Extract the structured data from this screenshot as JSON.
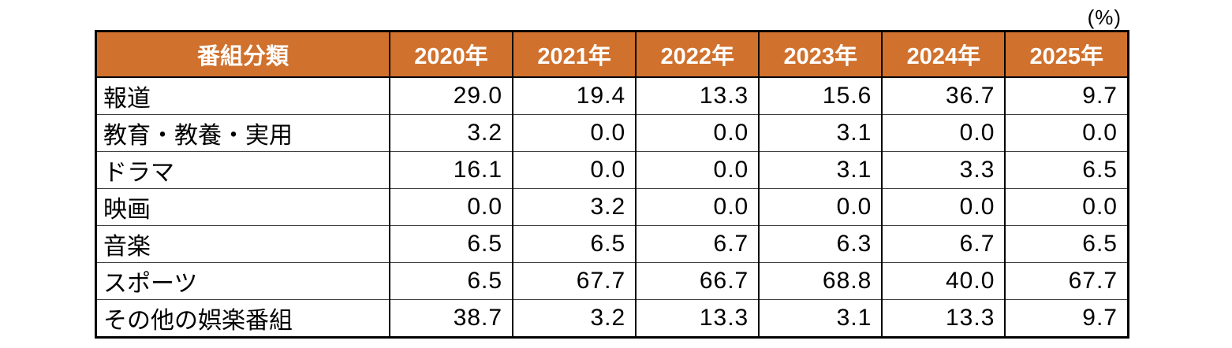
{
  "colors": {
    "header_bg": "#D0712D",
    "header_text": "#FFFFFF",
    "grid_heavy": "#000000",
    "grid_light": "#3F3F3F"
  },
  "chart_data": {
    "type": "table",
    "unit_label": "(%)",
    "category_header": "番組分類",
    "categories": [
      "2020年",
      "2021年",
      "2022年",
      "2023年",
      "2024年",
      "2025年"
    ],
    "series": [
      {
        "name": "報道",
        "values": [
          29.0,
          19.4,
          13.3,
          15.6,
          36.7,
          9.7
        ]
      },
      {
        "name": "教育・教養・実用",
        "values": [
          3.2,
          0.0,
          0.0,
          3.1,
          0.0,
          0.0
        ]
      },
      {
        "name": "ドラマ",
        "values": [
          16.1,
          0.0,
          0.0,
          3.1,
          3.3,
          6.5
        ]
      },
      {
        "name": "映画",
        "values": [
          0.0,
          3.2,
          0.0,
          0.0,
          0.0,
          0.0
        ]
      },
      {
        "name": "音楽",
        "values": [
          6.5,
          6.5,
          6.7,
          6.3,
          6.7,
          6.5
        ]
      },
      {
        "name": "スポーツ",
        "values": [
          6.5,
          67.7,
          66.7,
          68.8,
          40.0,
          67.7
        ]
      },
      {
        "name": "その他の娯楽番組",
        "values": [
          38.7,
          3.2,
          13.3,
          3.1,
          13.3,
          9.7
        ]
      }
    ],
    "layout": {
      "value_decimals": 1,
      "values_align": "right",
      "grid": true,
      "header_style": "orange-filled"
    }
  }
}
